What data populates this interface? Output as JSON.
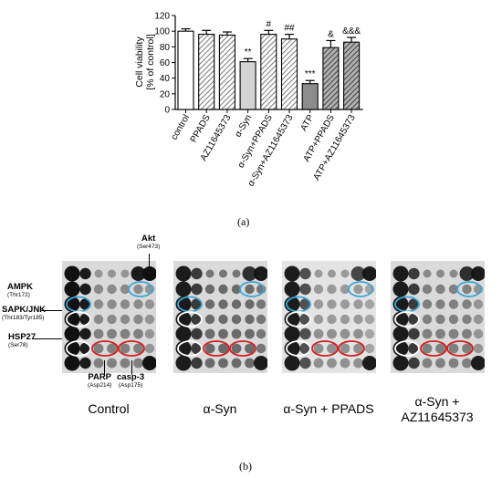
{
  "chart_data": {
    "type": "bar",
    "ylabel": "Cell viability\n[% of control]",
    "ylim": [
      0,
      120
    ],
    "yticks": [
      0,
      20,
      40,
      60,
      80,
      100,
      120
    ],
    "categories": [
      "control",
      "PPADS",
      "AZ11645373",
      "α-Syn",
      "α-Syn+PPADS",
      "α-Syn+AZ11645373",
      "ATP",
      "ATP+PPADS",
      "ATP+AZ11645373"
    ],
    "values": [
      100,
      96,
      95,
      61,
      96,
      90,
      33,
      79,
      86
    ],
    "errors": [
      3,
      5,
      4,
      4,
      5,
      6,
      4,
      9,
      6
    ],
    "significance": [
      "",
      "",
      "",
      "**",
      "#",
      "##",
      "***",
      "&",
      "&&&"
    ],
    "bar_styles": [
      "white",
      "hatch",
      "hatch",
      "lightgray",
      "hatch",
      "hatch",
      "darkgray",
      "hatch-dark",
      "hatch-dark"
    ],
    "grid": false
  },
  "labels": {
    "a": "(a)",
    "b": "(b)"
  },
  "blots": [
    {
      "caption": "Control"
    },
    {
      "caption": "α-Syn"
    },
    {
      "caption": "α-Syn + PPADS"
    },
    {
      "caption": "α-Syn +\nAZ11645373"
    }
  ],
  "annotations": {
    "akt": {
      "name": "Akt",
      "site": "(Ser473)"
    },
    "ampk": {
      "name": "AMPK",
      "site": "(Thr172)"
    },
    "sapk": {
      "name": "SAPK/JNK",
      "site": "(Thr183/Tyr185)"
    },
    "hsp27": {
      "name": "HSP27",
      "site": "(Ser78)"
    },
    "parp": {
      "name": "PARP",
      "site": "(Asp214)"
    },
    "casp3": {
      "name": "casp-3",
      "site": "(Asp175)"
    }
  },
  "colors": {
    "blue_circle": "#3aa6d8",
    "white_circle": "#ffffff",
    "red_circle": "#d22020"
  }
}
